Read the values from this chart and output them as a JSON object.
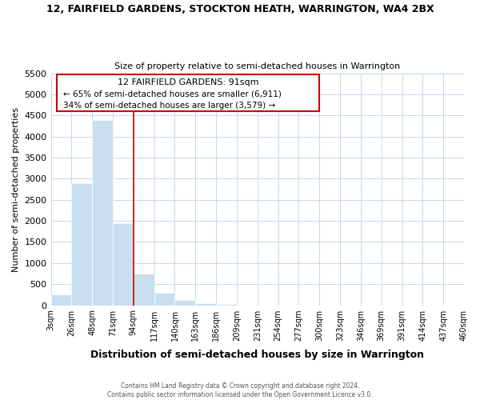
{
  "title": "12, FAIRFIELD GARDENS, STOCKTON HEATH, WARRINGTON, WA4 2BX",
  "subtitle": "Size of property relative to semi-detached houses in Warrington",
  "xlabel": "Distribution of semi-detached houses by size in Warrington",
  "ylabel": "Number of semi-detached properties",
  "bar_color": "#c8dff0",
  "bar_edge_color": "#ffffff",
  "grid_color": "#c8d8e8",
  "tick_labels": [
    "3sqm",
    "26sqm",
    "48sqm",
    "71sqm",
    "94sqm",
    "117sqm",
    "140sqm",
    "163sqm",
    "186sqm",
    "209sqm",
    "231sqm",
    "254sqm",
    "277sqm",
    "300sqm",
    "323sqm",
    "346sqm",
    "369sqm",
    "391sqm",
    "414sqm",
    "437sqm",
    "460sqm"
  ],
  "bar_values": [
    250,
    2900,
    4400,
    1950,
    750,
    300,
    120,
    50,
    20,
    0,
    0,
    0,
    0,
    0,
    0,
    0,
    0,
    0,
    0,
    0
  ],
  "property_line_x": 4,
  "property_line_color": "#cc0000",
  "ylim": [
    0,
    5500
  ],
  "yticks": [
    0,
    500,
    1000,
    1500,
    2000,
    2500,
    3000,
    3500,
    4000,
    4500,
    5000,
    5500
  ],
  "annotation_title": "12 FAIRFIELD GARDENS: 91sqm",
  "annotation_line1": "← 65% of semi-detached houses are smaller (6,911)",
  "annotation_line2": "34% of semi-detached houses are larger (3,579) →",
  "footer_line1": "Contains HM Land Registry data © Crown copyright and database right 2024.",
  "footer_line2": "Contains public sector information licensed under the Open Government Licence v3.0.",
  "background_color": "#ffffff"
}
